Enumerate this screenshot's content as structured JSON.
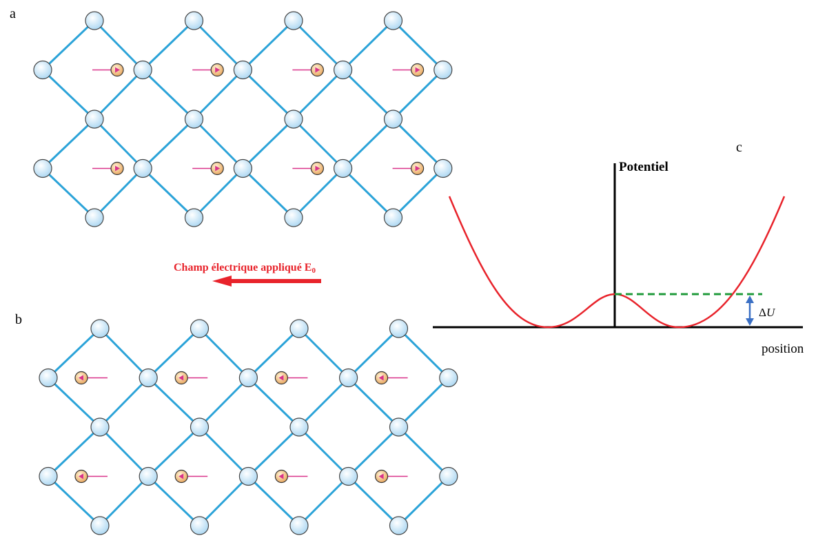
{
  "labels": {
    "a": "a",
    "b": "b",
    "c": "c"
  },
  "field": {
    "text": "Champ électrique appliqué E",
    "subscript": "0"
  },
  "plot": {
    "y_axis": "Potentiel",
    "x_axis": "position",
    "barrier": {
      "delta": "Δ",
      "symbol": "U"
    }
  }
}
